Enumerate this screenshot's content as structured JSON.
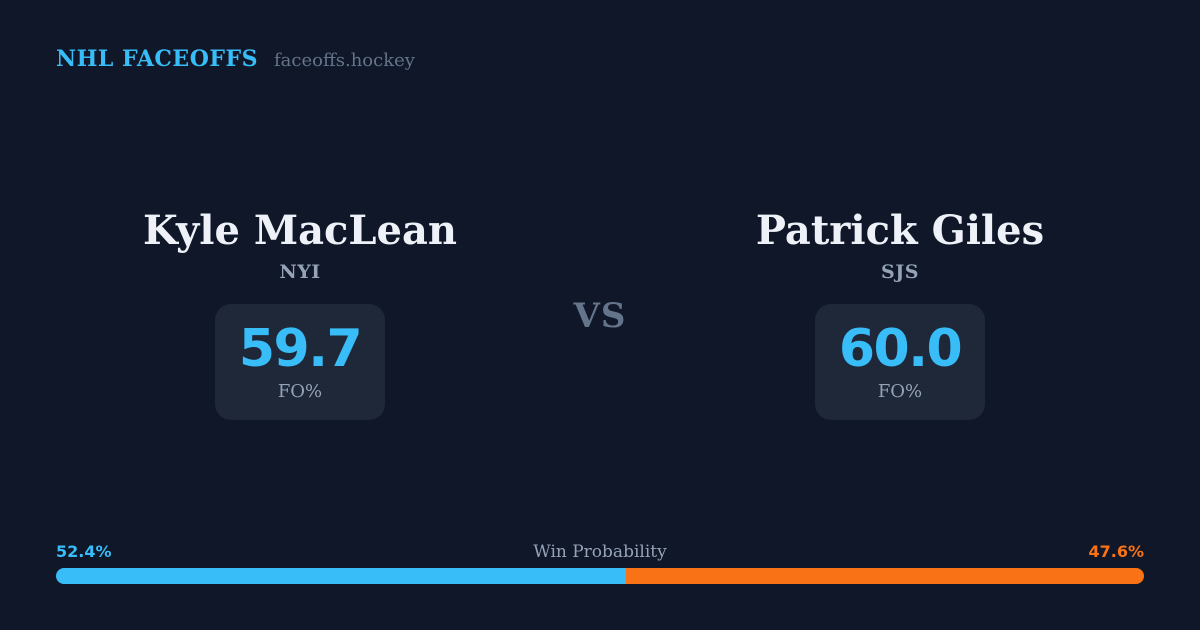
{
  "header": {
    "brand": "NHL FACEOFFS",
    "site": "faceoffs.hockey"
  },
  "matchup": {
    "vs_label": "VS"
  },
  "players": {
    "left": {
      "name": "Kyle MacLean",
      "team": "NYI",
      "stat_value": "59.7",
      "stat_label": "FO%"
    },
    "right": {
      "name": "Patrick Giles",
      "team": "SJS",
      "stat_value": "60.0",
      "stat_label": "FO%"
    }
  },
  "win_probability": {
    "title": "Win Probability",
    "left_label": "52.4%",
    "right_label": "47.6%",
    "left_pct": 52.4,
    "right_pct": 47.6
  },
  "colors": {
    "background": "#0f1728",
    "card": "#1e2839",
    "accent_blue": "#38bdf8",
    "accent_orange": "#f97316",
    "text_primary": "#eef2f8",
    "text_muted": "#94a3b8",
    "text_dim": "#64748b"
  },
  "chart_data": {
    "type": "bar",
    "layout": "horizontal-stacked",
    "title": "Win Probability",
    "unit": "%",
    "xlim": [
      0,
      100
    ],
    "series": [
      {
        "name": "Kyle MacLean (NYI)",
        "value": 52.4,
        "color": "#38bdf8"
      },
      {
        "name": "Patrick Giles (SJS)",
        "value": 47.6,
        "color": "#f97316"
      }
    ],
    "related_stats": {
      "metric": "FO%",
      "values": [
        {
          "player": "Kyle MacLean",
          "team": "NYI",
          "value": 59.7
        },
        {
          "player": "Patrick Giles",
          "team": "SJS",
          "value": 60.0
        }
      ]
    }
  }
}
